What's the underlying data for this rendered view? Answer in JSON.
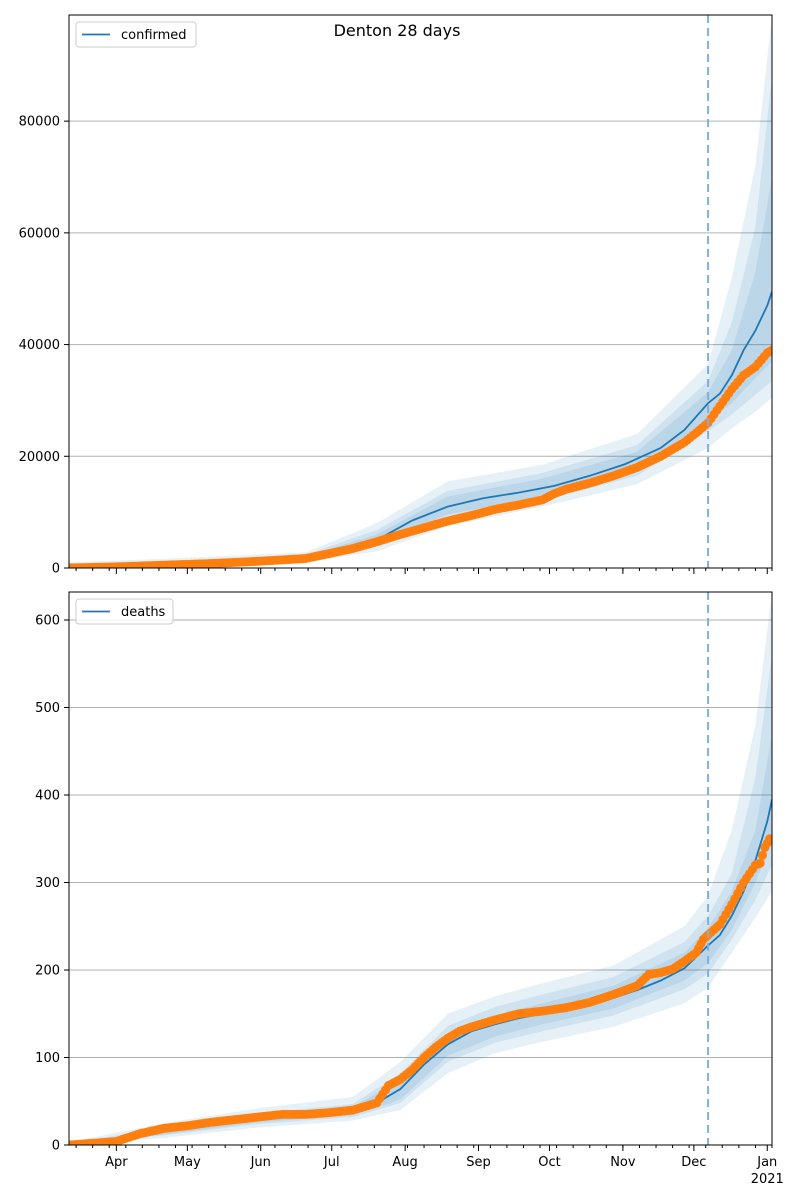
{
  "title": "Denton 28 days",
  "colors": {
    "model_line": "#1f77b4",
    "observed": "#ff7f0e",
    "band": "#1f77b4",
    "grid": "#b0b0b0",
    "cutoff": "#7fb0d8"
  },
  "x_axis": {
    "month_labels": [
      "Apr",
      "May",
      "Jun",
      "Jul",
      "Aug",
      "Sep",
      "Oct",
      "Nov",
      "Dec",
      "Jan"
    ],
    "month_day_index": [
      20,
      50,
      81,
      111,
      142,
      173,
      203,
      234,
      264,
      295
    ],
    "year_label": "2021",
    "day_range": [
      0,
      297
    ],
    "forecast_cutoff_day": 270
  },
  "chart_data": [
    {
      "type": "line",
      "legend": "confirmed",
      "legend_placement": "upper-left",
      "ylim": [
        0,
        99000
      ],
      "yticks": [
        0,
        20000,
        40000,
        60000,
        80000
      ],
      "ytick_labels": [
        "0",
        "20000",
        "40000",
        "60000",
        "80000"
      ],
      "grid": true,
      "model": {
        "x": [
          0,
          20,
          40,
          60,
          80,
          100,
          115,
          130,
          145,
          160,
          175,
          190,
          205,
          220,
          235,
          250,
          260,
          270,
          275,
          280,
          285,
          290,
          295,
          297
        ],
        "y": [
          0,
          200,
          600,
          900,
          1200,
          1800,
          3000,
          5000,
          8500,
          11000,
          12500,
          13500,
          14700,
          16500,
          18600,
          21500,
          24700,
          29500,
          31200,
          34500,
          39000,
          42500,
          47000,
          49500
        ]
      },
      "bands": [
        {
          "x": [
            0,
            60,
            100,
            130,
            160,
            200,
            240,
            270,
            280,
            290,
            297
          ],
          "lower": [
            0,
            500,
            1000,
            3000,
            7500,
            11000,
            15000,
            21500,
            25000,
            28000,
            30500
          ],
          "upper": [
            1000,
            2000,
            2800,
            8000,
            15500,
            18500,
            24000,
            36500,
            52000,
            72000,
            99000
          ]
        },
        {
          "x": [
            0,
            60,
            100,
            130,
            160,
            200,
            240,
            270,
            280,
            290,
            297
          ],
          "lower": [
            0,
            700,
            1300,
            3800,
            8800,
            12000,
            16500,
            24500,
            27500,
            31000,
            33500
          ],
          "upper": [
            800,
            1600,
            2400,
            6800,
            13800,
            17000,
            22000,
            33500,
            44000,
            61000,
            88000
          ]
        },
        {
          "x": [
            0,
            60,
            100,
            130,
            160,
            200,
            240,
            270,
            280,
            290,
            297
          ],
          "lower": [
            0,
            800,
            1500,
            4300,
            9600,
            12800,
            17500,
            26500,
            29500,
            34000,
            37000
          ],
          "upper": [
            600,
            1300,
            2100,
            6000,
            12800,
            16000,
            20800,
            31500,
            39000,
            53000,
            70000
          ]
        }
      ],
      "observed": {
        "x": [
          0,
          20,
          40,
          60,
          80,
          100,
          110,
          120,
          130,
          140,
          150,
          160,
          170,
          180,
          190,
          200,
          205,
          210,
          220,
          230,
          240,
          250,
          260,
          265,
          270,
          275,
          280,
          285,
          290,
          295,
          297
        ],
        "y": [
          0,
          200,
          500,
          800,
          1200,
          1700,
          2600,
          3500,
          4700,
          6000,
          7200,
          8400,
          9400,
          10500,
          11300,
          12200,
          13300,
          14100,
          15200,
          16500,
          18000,
          20000,
          22500,
          24200,
          26000,
          29000,
          32000,
          34500,
          36000,
          38500,
          39000
        ]
      }
    },
    {
      "type": "line",
      "legend": "deaths",
      "legend_placement": "upper-left",
      "ylim": [
        0,
        632
      ],
      "yticks": [
        0,
        100,
        200,
        300,
        400,
        500,
        600
      ],
      "ytick_labels": [
        "0",
        "100",
        "200",
        "300",
        "400",
        "500",
        "600"
      ],
      "grid": true,
      "model": {
        "x": [
          0,
          20,
          40,
          60,
          80,
          100,
          110,
          120,
          130,
          140,
          150,
          160,
          170,
          180,
          190,
          200,
          210,
          220,
          230,
          240,
          250,
          260,
          270,
          275,
          280,
          285,
          290,
          295,
          297
        ],
        "y": [
          0,
          3,
          15,
          23,
          30,
          35,
          36,
          39,
          48,
          64,
          92,
          115,
          130,
          138,
          145,
          150,
          155,
          162,
          168,
          177,
          188,
          202,
          228,
          240,
          262,
          290,
          325,
          370,
          395
        ]
      },
      "bands": [
        {
          "x": [
            0,
            40,
            80,
            120,
            140,
            160,
            180,
            200,
            230,
            260,
            270,
            280,
            290,
            297
          ],
          "lower": [
            0,
            8,
            20,
            28,
            40,
            82,
            105,
            118,
            135,
            162,
            180,
            220,
            260,
            290
          ],
          "upper": [
            3,
            25,
            42,
            55,
            95,
            150,
            170,
            185,
            205,
            250,
            285,
            360,
            480,
            632
          ]
        },
        {
          "x": [
            0,
            40,
            80,
            120,
            140,
            160,
            180,
            200,
            230,
            260,
            270,
            280,
            290,
            297
          ],
          "lower": [
            0,
            11,
            24,
            32,
            48,
            95,
            117,
            130,
            148,
            178,
            196,
            235,
            280,
            320
          ],
          "upper": [
            2,
            20,
            36,
            47,
            82,
            136,
            158,
            172,
            192,
            232,
            262,
            310,
            420,
            560
          ]
        },
        {
          "x": [
            0,
            40,
            80,
            120,
            140,
            160,
            180,
            200,
            230,
            260,
            270,
            280,
            290,
            297
          ],
          "lower": [
            0,
            12,
            26,
            34,
            52,
            102,
            124,
            138,
            156,
            188,
            208,
            246,
            300,
            345
          ],
          "upper": [
            1,
            18,
            33,
            44,
            74,
            126,
            148,
            162,
            182,
            220,
            248,
            290,
            360,
            470
          ]
        }
      ],
      "observed": {
        "x": [
          0,
          20,
          30,
          40,
          50,
          60,
          70,
          80,
          90,
          100,
          110,
          120,
          130,
          135,
          140,
          145,
          150,
          155,
          160,
          165,
          170,
          180,
          190,
          200,
          210,
          220,
          230,
          240,
          245,
          250,
          255,
          260,
          265,
          268,
          270,
          275,
          280,
          285,
          290,
          292,
          294,
          296
        ],
        "y": [
          0,
          4,
          13,
          19,
          22,
          26,
          29,
          32,
          35,
          35,
          37,
          40,
          48,
          68,
          75,
          86,
          100,
          112,
          122,
          130,
          135,
          143,
          150,
          153,
          157,
          163,
          172,
          182,
          195,
          197,
          201,
          210,
          220,
          235,
          240,
          252,
          275,
          300,
          320,
          322,
          340,
          350
        ]
      }
    }
  ]
}
